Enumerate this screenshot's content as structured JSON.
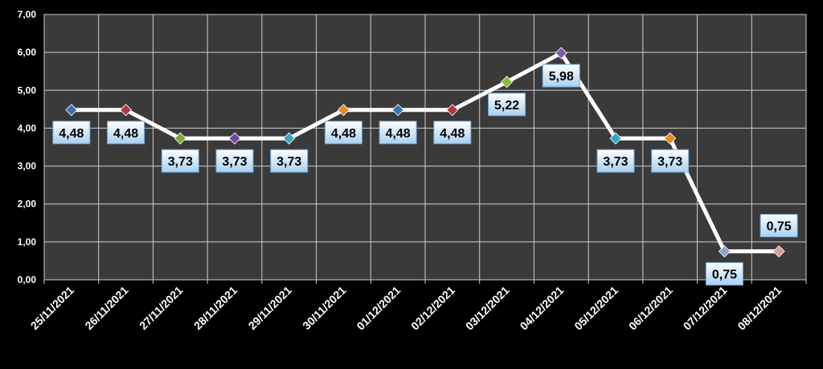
{
  "colors": {
    "background": "#000000",
    "plot_area": "#3a3a3a",
    "grid": "#cfcfcf",
    "line": "#ffffff",
    "label_fill_top": "#ffffff",
    "label_fill_bottom": "#a8cff2"
  },
  "chart_data": {
    "type": "line",
    "categories": [
      "25/11/2021",
      "26/11/2021",
      "27/11/2021",
      "28/11/2021",
      "29/11/2021",
      "30/11/2021",
      "01/12/2021",
      "02/12/2021",
      "03/12/2021",
      "04/12/2021",
      "05/12/2021",
      "06/12/2021",
      "07/12/2021",
      "08/12/2021"
    ],
    "values": [
      4.48,
      4.48,
      3.73,
      3.73,
      3.73,
      4.48,
      4.48,
      4.48,
      5.22,
      5.98,
      3.73,
      3.73,
      0.75,
      0.75
    ],
    "data_labels": [
      "4,48",
      "4,48",
      "3,73",
      "3,73",
      "3,73",
      "4,48",
      "4,48",
      "4,48",
      "5,22",
      "5,98",
      "3,73",
      "3,73",
      "0,75",
      "0,75"
    ],
    "label_position": [
      "below",
      "below",
      "below",
      "below",
      "below",
      "below",
      "below",
      "below",
      "below",
      "below",
      "below",
      "below",
      "below",
      "above"
    ],
    "marker_colors": [
      "#3a6fb5",
      "#b43a3a",
      "#7fa63a",
      "#6a4a9a",
      "#3aa6c0",
      "#e08a2a",
      "#3a6fb5",
      "#b43a3a",
      "#8ab83a",
      "#7a5aae",
      "#2ea8c8",
      "#e88a20",
      "#8aa6cc",
      "#d89a9a"
    ],
    "y_ticks": [
      "0,00",
      "1,00",
      "2,00",
      "3,00",
      "4,00",
      "5,00",
      "6,00",
      "7,00"
    ],
    "ylim": [
      0,
      7
    ],
    "grid": true,
    "legend": false
  }
}
